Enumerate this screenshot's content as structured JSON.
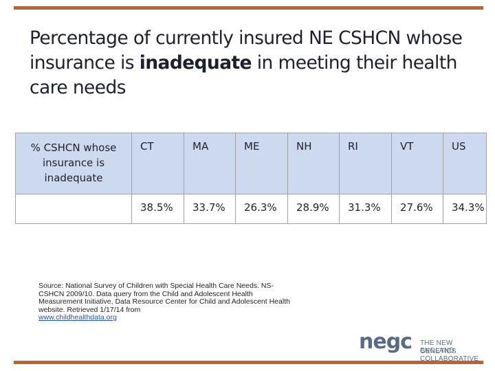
{
  "title": {
    "pre": "Percentage of currently insured NE CSHCN whose insurance is ",
    "bold": "inadequate",
    "post": " in meeting their health care needs"
  },
  "table": {
    "row_label": "% CSHCN whose insurance is inadequate",
    "headers": [
      "CT",
      "MA",
      "ME",
      "NH",
      "RI",
      "VT",
      "US"
    ],
    "values": [
      "38.5%",
      "33.7%",
      "26.3%",
      "28.9%",
      "31.3%",
      "27.6%",
      "34.3%"
    ]
  },
  "source": {
    "text": "Source: National Survey of Children with Special Health Care Needs. NS-CSHCN 2009/10. Data query from the Child and Adolescent Health Measurement Initiative, Data Resource Center for Child and Adolescent Health website. Retrieved 1/17/14  from",
    "link": "www.childhealthdata.org"
  },
  "logo": {
    "word": "negc",
    "line1": "THE NEW ENGLAND",
    "line2": "GENETICS COLLABORATIVE"
  },
  "colors": {
    "rule": "#c0632a",
    "header_fill": "#cdd9ee"
  }
}
